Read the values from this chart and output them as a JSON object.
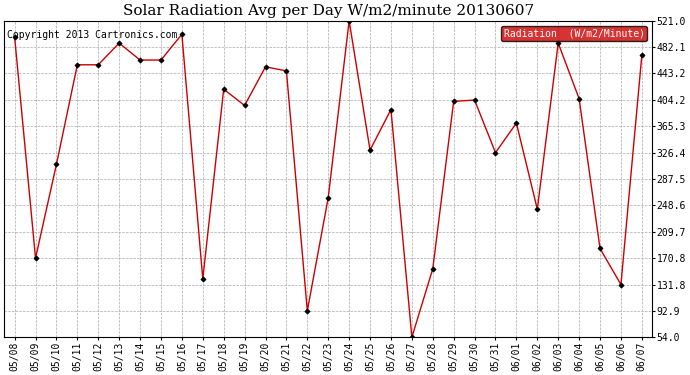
{
  "title": "Solar Radiation Avg per Day W/m2/minute 20130607",
  "copyright": "Copyright 2013 Cartronics.com",
  "legend_label": "Radiation  (W/m2/Minute)",
  "dates": [
    "05/08",
    "05/09",
    "05/10",
    "05/11",
    "05/12",
    "05/13",
    "05/14",
    "05/15",
    "05/16",
    "05/17",
    "05/18",
    "05/19",
    "05/20",
    "05/21",
    "05/22",
    "05/23",
    "05/24",
    "05/25",
    "05/26",
    "05/27",
    "05/28",
    "05/29",
    "05/30",
    "05/31",
    "06/01",
    "06/02",
    "06/03",
    "06/04",
    "06/05",
    "06/06",
    "06/07"
  ],
  "values": [
    497.0,
    170.8,
    309.0,
    456.0,
    456.0,
    488.0,
    463.0,
    463.0,
    501.0,
    140.0,
    420.0,
    396.0,
    453.0,
    447.0,
    93.0,
    260.0,
    521.0,
    330.0,
    390.0,
    54.0,
    155.0,
    402.0,
    404.0,
    326.4,
    370.0,
    243.0,
    488.0,
    406.0,
    185.0,
    131.8,
    470.0
  ],
  "line_color": "#cc0000",
  "marker_color": "#000000",
  "background_color": "#ffffff",
  "grid_color": "#aaaaaa",
  "ylim": [
    54.0,
    521.0
  ],
  "yticks": [
    54.0,
    92.9,
    131.8,
    170.8,
    209.7,
    248.6,
    287.5,
    326.4,
    365.3,
    404.2,
    443.2,
    482.1,
    521.0
  ],
  "title_fontsize": 11,
  "copyright_fontsize": 7,
  "tick_fontsize": 7,
  "legend_fontsize": 7,
  "legend_bg": "#cc0000",
  "legend_fg": "#ffffff",
  "fig_width": 6.9,
  "fig_height": 3.75,
  "dpi": 100
}
